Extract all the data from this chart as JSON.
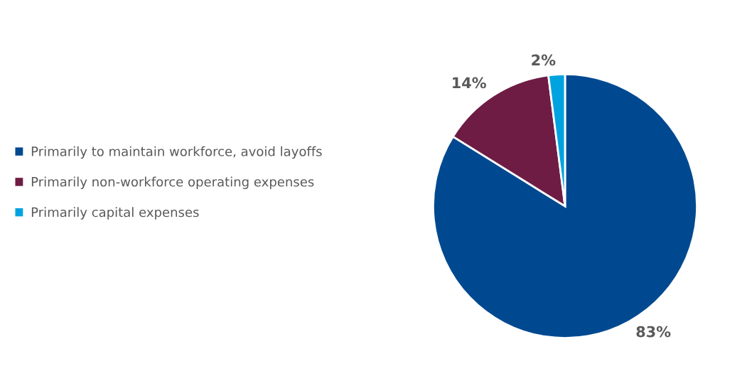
{
  "chart_data": {
    "type": "pie",
    "categories": [
      "Primarily to maintain workforce, avoid layoffs",
      "Primarily non-workforce operating expenses",
      "Primarily capital expenses"
    ],
    "values": [
      83,
      14,
      2
    ],
    "colors": [
      "#004990",
      "#6e1c44",
      "#00a3e0"
    ],
    "value_labels": [
      "83%",
      "14%",
      "2%"
    ],
    "legend": "left"
  }
}
